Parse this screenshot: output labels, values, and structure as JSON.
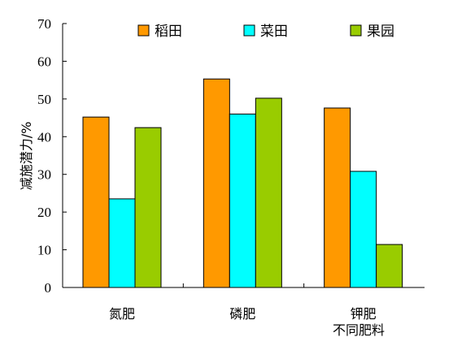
{
  "chart_data": {
    "type": "bar",
    "title": "",
    "ylabel": "减施潜力/%",
    "xlabel": "不同肥料",
    "categories": [
      "氮肥",
      "磷肥",
      "钾肥"
    ],
    "series": [
      {
        "name": "稻田",
        "color": "#FF9900",
        "values": [
          45.2,
          55.3,
          47.6
        ]
      },
      {
        "name": "菜田",
        "color": "#00FFFF",
        "values": [
          23.5,
          46.0,
          30.8
        ]
      },
      {
        "name": "果园",
        "color": "#99CC00",
        "values": [
          42.4,
          50.2,
          11.4
        ]
      }
    ],
    "ylim": [
      0,
      70
    ],
    "yticks": [
      0,
      10,
      20,
      30,
      40,
      50,
      60,
      70
    ],
    "grid": false,
    "legend_position": "top-right"
  }
}
